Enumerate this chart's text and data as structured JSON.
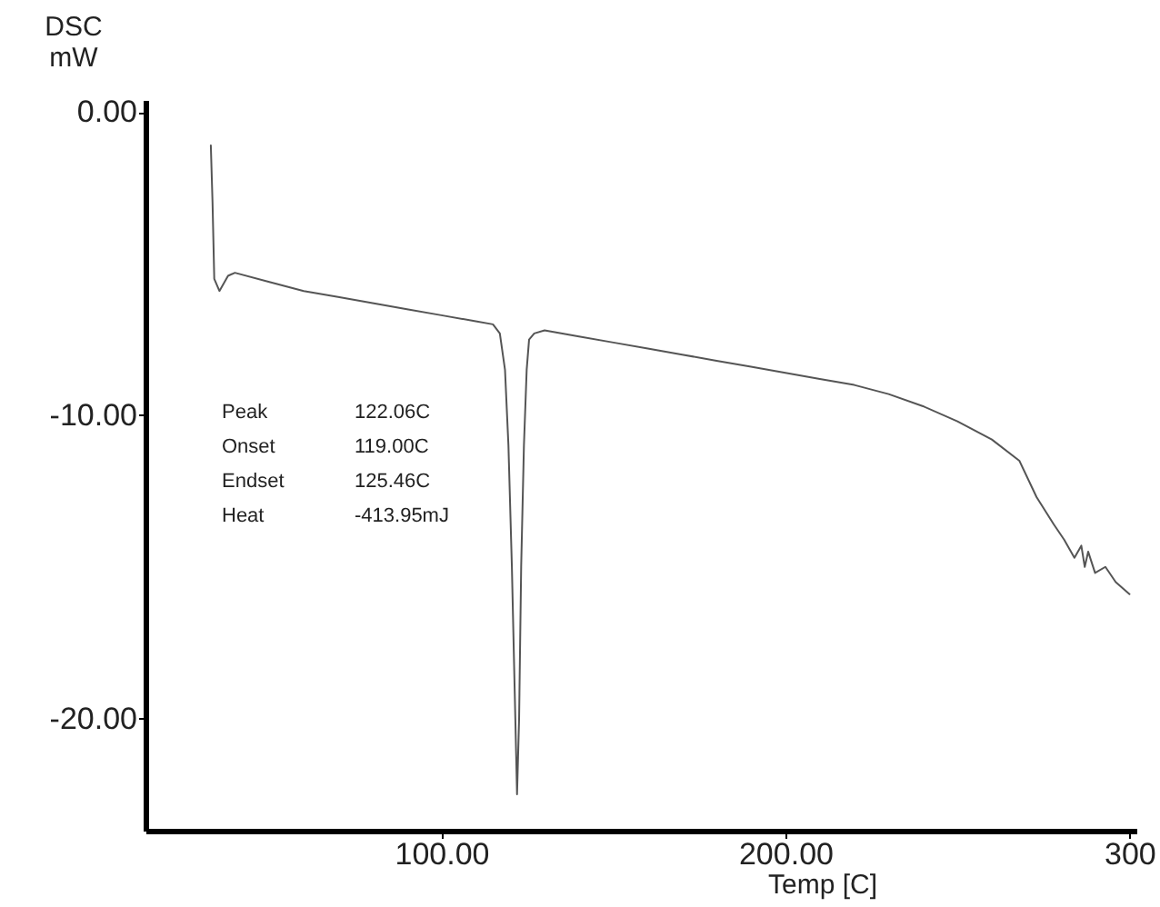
{
  "chart_data": {
    "type": "line",
    "xlabel": "Temp [C]",
    "ylabel": "DSC\nmW",
    "xlim": [
      14,
      302
    ],
    "ylim": [
      -23.7,
      0.4
    ],
    "xticks": [
      {
        "value": 100,
        "label": "100.00"
      },
      {
        "value": 200,
        "label": "200.00"
      },
      {
        "value": 300,
        "label": "300"
      }
    ],
    "yticks": [
      {
        "value": -20,
        "label": "-20.00"
      },
      {
        "value": -10,
        "label": "-10.00"
      },
      {
        "value": 0,
        "label": "0.00"
      }
    ],
    "grid": false,
    "marker": "none",
    "line_style": "solid",
    "annotations": [
      "Peak",
      "122.06C",
      "Onset",
      "119.00C",
      "Endset",
      "125.46C",
      "Heat",
      "-413.95mJ"
    ],
    "series": [
      {
        "color": "#555555",
        "x": [
          33,
          33.5,
          34,
          35.5,
          38,
          40,
          50,
          60,
          70,
          80,
          90,
          100,
          110,
          115,
          117,
          118.5,
          119.5,
          120.5,
          121.5,
          122,
          122.6,
          123.2,
          124,
          124.8,
          125.5,
          127,
          130,
          140,
          150,
          160,
          170,
          180,
          190,
          200,
          210,
          220,
          230,
          240,
          250,
          260,
          268,
          273,
          278,
          281,
          284,
          286,
          287,
          288,
          290,
          293,
          296,
          300
        ],
        "values": [
          -1.1,
          -3,
          -5.5,
          -5.9,
          -5.4,
          -5.3,
          -5.6,
          -5.9,
          -6.1,
          -6.3,
          -6.5,
          -6.7,
          -6.9,
          -7.0,
          -7.3,
          -8.5,
          -11,
          -15,
          -20,
          -22.5,
          -20,
          -15,
          -11,
          -8.5,
          -7.5,
          -7.3,
          -7.2,
          -7.4,
          -7.6,
          -7.8,
          -8.0,
          -8.2,
          -8.4,
          -8.6,
          -8.8,
          -9.0,
          -9.3,
          -9.7,
          -10.2,
          -10.8,
          -11.5,
          -12.7,
          -13.6,
          -14.1,
          -14.7,
          -14.3,
          -15.0,
          -14.5,
          -15.2,
          -15.0,
          -15.5,
          -15.9
        ]
      }
    ]
  }
}
